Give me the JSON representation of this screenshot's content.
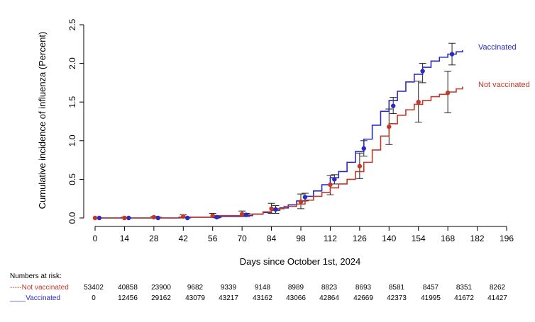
{
  "chart_data": {
    "type": "line",
    "xlabel": "Days since October 1st, 2024",
    "ylabel": "Cumulative incidence of influenza (Percent)",
    "xlim": [
      0,
      196
    ],
    "ylim": [
      0,
      2.5
    ],
    "xticks": [
      0,
      14,
      28,
      42,
      56,
      70,
      84,
      98,
      112,
      126,
      140,
      154,
      168,
      182,
      196
    ],
    "yticks": [
      0.0,
      0.5,
      1.0,
      1.5,
      2.0,
      2.5
    ],
    "ytick_labels": [
      "0.0",
      "0.5",
      "1.0",
      "1.5",
      "2.0",
      "2.5"
    ],
    "grid": false,
    "legend_placement": "right, at line ends",
    "series": [
      {
        "name": "Vaccinated",
        "color": "#2b2bbf",
        "step_x": [
          0,
          20,
          40,
          60,
          70,
          75,
          80,
          84,
          88,
          92,
          96,
          100,
          104,
          108,
          112,
          116,
          120,
          124,
          128,
          132,
          136,
          140,
          144,
          148,
          152,
          156,
          160,
          164,
          168,
          172,
          175
        ],
        "step_y": [
          0.0,
          0.0,
          0.01,
          0.02,
          0.03,
          0.05,
          0.07,
          0.1,
          0.13,
          0.17,
          0.22,
          0.28,
          0.35,
          0.43,
          0.52,
          0.6,
          0.72,
          0.86,
          1.02,
          1.2,
          1.38,
          1.52,
          1.64,
          1.76,
          1.86,
          1.95,
          2.03,
          2.08,
          2.12,
          2.15,
          2.17
        ],
        "markers_x": [
          2,
          16,
          30,
          44,
          58,
          72,
          86,
          100,
          114,
          128,
          142,
          156,
          170
        ],
        "markers_y": [
          0.0,
          0.0,
          0.0,
          0.0,
          0.01,
          0.04,
          0.11,
          0.27,
          0.5,
          0.9,
          1.45,
          1.9,
          2.12
        ],
        "err_low": [
          0.0,
          0.0,
          0.0,
          0.0,
          0.0,
          0.02,
          0.06,
          0.22,
          0.44,
          0.8,
          1.35,
          1.75,
          1.98
        ],
        "err_high": [
          0.0,
          0.0,
          0.01,
          0.01,
          0.02,
          0.06,
          0.16,
          0.32,
          0.56,
          1.0,
          1.56,
          2.0,
          2.26
        ]
      },
      {
        "name": "Not vaccinated",
        "color": "#c0392b",
        "step_x": [
          0,
          20,
          40,
          56,
          70,
          80,
          84,
          90,
          96,
          100,
          104,
          108,
          112,
          116,
          120,
          124,
          128,
          132,
          136,
          140,
          144,
          148,
          152,
          156,
          160,
          164,
          168,
          172,
          175
        ],
        "step_y": [
          0.0,
          0.0,
          0.01,
          0.03,
          0.05,
          0.08,
          0.12,
          0.15,
          0.18,
          0.23,
          0.28,
          0.33,
          0.39,
          0.44,
          0.5,
          0.6,
          0.72,
          0.88,
          1.06,
          1.22,
          1.33,
          1.4,
          1.47,
          1.52,
          1.57,
          1.6,
          1.63,
          1.67,
          1.7
        ],
        "markers_x": [
          0,
          14,
          28,
          42,
          56,
          70,
          84,
          98,
          112,
          126,
          140,
          154,
          168
        ],
        "markers_y": [
          0.0,
          0.0,
          0.01,
          0.02,
          0.03,
          0.05,
          0.12,
          0.21,
          0.43,
          0.67,
          1.18,
          1.5,
          1.62
        ],
        "err_low": [
          0.0,
          0.0,
          0.0,
          0.0,
          0.01,
          0.02,
          0.06,
          0.12,
          0.3,
          0.51,
          0.95,
          1.24,
          1.36
        ],
        "err_high": [
          0.0,
          0.01,
          0.02,
          0.04,
          0.06,
          0.09,
          0.19,
          0.31,
          0.55,
          0.84,
          1.41,
          1.77,
          1.9
        ]
      }
    ],
    "risk_table": {
      "heading": "Numbers at risk:",
      "rows": [
        {
          "label": "-----Not vaccinated",
          "color": "#c0392b",
          "values": [
            "53402",
            "40858",
            "23900",
            "9682",
            "9339",
            "9148",
            "8989",
            "8823",
            "8693",
            "8581",
            "8457",
            "8351",
            "8262"
          ]
        },
        {
          "label": "____Vaccinated",
          "color": "#2b2bbf",
          "values": [
            "0",
            "12456",
            "29162",
            "43079",
            "43217",
            "43162",
            "43066",
            "42864",
            "42669",
            "42373",
            "41995",
            "41672",
            "41427"
          ]
        }
      ]
    }
  }
}
